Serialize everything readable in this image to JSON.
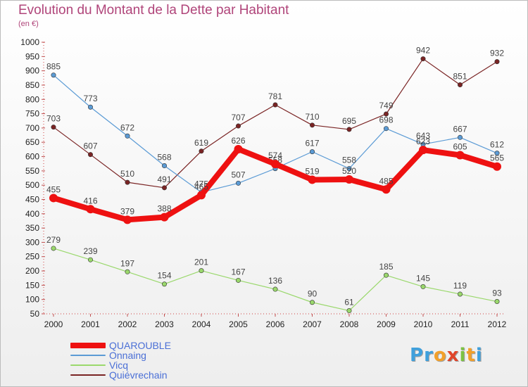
{
  "title": "Evolution du Montant de la Dette par Habitant",
  "unit_label": "(en €)",
  "logo": {
    "letters": [
      "P",
      "r",
      "o",
      "x",
      "i",
      "t",
      "i"
    ],
    "colors": [
      "#3fa0dc",
      "#3fa0dc",
      "#f2a02a",
      "#e0442a",
      "#7cc242",
      "#f2a02a",
      "#3fa0dc"
    ]
  },
  "chart_data": {
    "type": "line",
    "x": [
      "2000",
      "2001",
      "2002",
      "2003",
      "2004",
      "2005",
      "2006",
      "2007",
      "2008",
      "2009",
      "2010",
      "2011",
      "2012"
    ],
    "ylim": [
      50,
      1000
    ],
    "yticks": [
      50,
      100,
      150,
      200,
      250,
      300,
      350,
      400,
      450,
      500,
      550,
      600,
      650,
      700,
      750,
      800,
      850,
      900,
      950,
      1000
    ],
    "grid": false,
    "legend_position": "bottom-left",
    "series": [
      {
        "name": "Quiévrechain",
        "color": "#7a2424",
        "values": [
          703,
          607,
          510,
          491,
          619,
          707,
          781,
          710,
          695,
          749,
          942,
          851,
          932
        ]
      },
      {
        "name": "Onnaing",
        "color": "#5b9bd5",
        "values": [
          885,
          773,
          672,
          568,
          475,
          507,
          558,
          617,
          558,
          698,
          643,
          667,
          612
        ]
      },
      {
        "name": "Vicq",
        "color": "#9ad86c",
        "values": [
          279,
          239,
          197,
          154,
          201,
          167,
          136,
          90,
          61,
          185,
          145,
          119,
          93
        ]
      },
      {
        "name": "QUAROUBLE",
        "color": "#ee1111",
        "values": [
          455,
          416,
          379,
          388,
          465,
          626,
          574,
          519,
          520,
          485,
          623,
          605,
          565
        ]
      }
    ],
    "legend_order": [
      "QUAROUBLE",
      "Onnaing",
      "Vicq",
      "Quiévrechain"
    ]
  }
}
